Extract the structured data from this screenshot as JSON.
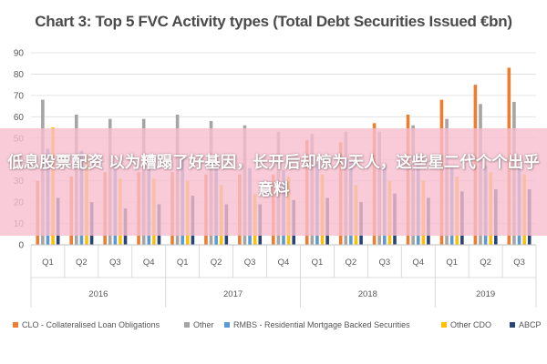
{
  "overlay": {
    "text": "低息股票配资 以为糟蹋了好基因，长开后却惊为天人，这些星二代个个出乎意料"
  },
  "chart_data": {
    "type": "bar",
    "title": "Chart 3: Top 5 FVC Activity types (Total Debt Securities Issued €bn)",
    "ylim": [
      0,
      90
    ],
    "yticks": [
      0,
      10,
      20,
      30,
      40,
      50,
      60,
      70,
      80,
      90
    ],
    "grid": true,
    "legend_position": "bottom",
    "categories": [
      "Q1",
      "Q2",
      "Q3",
      "Q4",
      "Q1",
      "Q2",
      "Q3",
      "Q4",
      "Q1",
      "Q2",
      "Q3",
      "Q4",
      "Q1",
      "Q2",
      "Q3"
    ],
    "years": [
      {
        "label": "2016",
        "quarters": 4
      },
      {
        "label": "2017",
        "quarters": 4
      },
      {
        "label": "2018",
        "quarters": 4
      },
      {
        "label": "2019",
        "quarters": 3
      }
    ],
    "series": [
      {
        "name": "CLO - Collateralised Loan Obligations",
        "color": "#ed7d31",
        "values": [
          30,
          32,
          34,
          34,
          34,
          33,
          33,
          33,
          49,
          48,
          57,
          61,
          68,
          75,
          83
        ]
      },
      {
        "name": "Other",
        "color": "#a5a5a5",
        "values": [
          68,
          61,
          59,
          59,
          61,
          58,
          56,
          53,
          52,
          53,
          53,
          56,
          59,
          66,
          67
        ]
      },
      {
        "name": "RMBS - Residential Mortgage Backed Securities",
        "color": "#5b9bd5",
        "values": [
          45,
          44,
          38,
          38,
          41,
          37,
          36,
          35,
          38,
          39,
          38,
          37,
          36,
          37,
          36
        ]
      },
      {
        "name": "Other CDO",
        "color": "#ffc000",
        "values": [
          55,
          42,
          31,
          31,
          30,
          28,
          24,
          32,
          33,
          28,
          30,
          30,
          32,
          34,
          33
        ]
      },
      {
        "name": "ABCP",
        "color": "#264478",
        "values": [
          22,
          20,
          17,
          19,
          23,
          19,
          19,
          21,
          22,
          20,
          24,
          22,
          25,
          26,
          26
        ]
      }
    ]
  }
}
